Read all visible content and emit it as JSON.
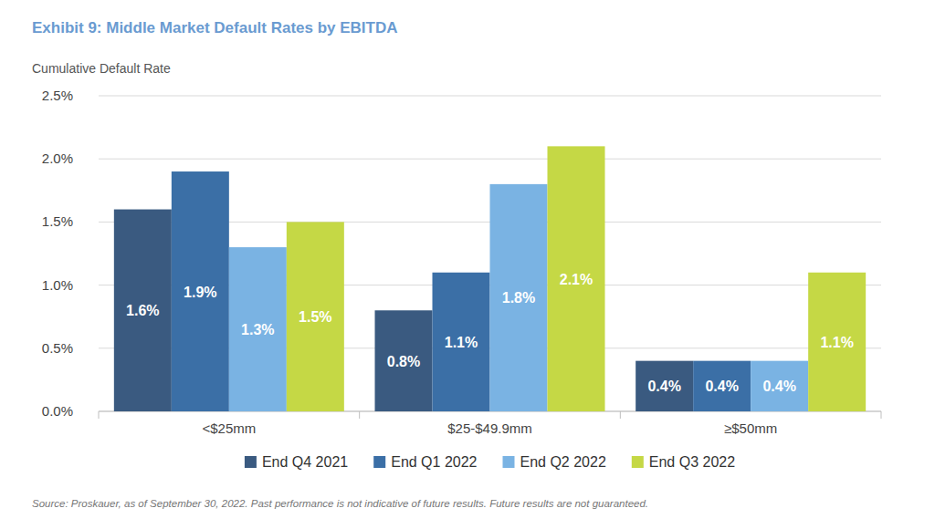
{
  "chart_data": {
    "type": "bar",
    "title": "Exhibit 9: Middle Market Default Rates by EBITDA",
    "y_label": "Cumulative Default Rate",
    "source": "Source: Proskauer, as of September 30, 2022. Past performance is not indicative of future results. Future results are not guaranteed.",
    "categories": [
      "<$25mm",
      "$25-$49.9mm",
      "≥$50mm"
    ],
    "series": [
      {
        "name": "End Q4 2021",
        "color": "#3a5a80",
        "values": [
          1.6,
          0.8,
          0.4
        ],
        "value_labels": [
          "1.6%",
          "0.8%",
          "0.4%"
        ]
      },
      {
        "name": "End Q1 2022",
        "color": "#3b6fa6",
        "values": [
          1.9,
          1.1,
          0.4
        ],
        "value_labels": [
          "1.9%",
          "1.1%",
          "0.4%"
        ]
      },
      {
        "name": "End Q2 2022",
        "color": "#7ab3e3",
        "values": [
          1.3,
          1.8,
          0.4
        ],
        "value_labels": [
          "1.3%",
          "1.8%",
          "0.4%"
        ]
      },
      {
        "name": "End Q3 2022",
        "color": "#c5d845",
        "values": [
          1.5,
          2.1,
          1.1
        ],
        "value_labels": [
          "1.5%",
          "2.1%",
          "1.1%"
        ]
      }
    ],
    "ylim": [
      0,
      2.5
    ],
    "yticks": [
      {
        "value": 0,
        "label": "0.0%"
      },
      {
        "value": 0.5,
        "label": "0.5%"
      },
      {
        "value": 1,
        "label": "1.0%"
      },
      {
        "value": 1.5,
        "label": "1.5%"
      },
      {
        "value": 2,
        "label": "2.0%"
      },
      {
        "value": 2.5,
        "label": "2.5%"
      }
    ],
    "grid": true,
    "data_labels": true,
    "legend": "bottom"
  }
}
